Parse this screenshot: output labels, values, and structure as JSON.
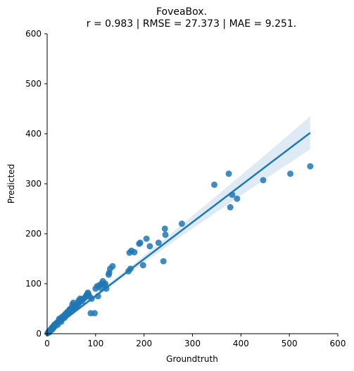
{
  "chart_data": {
    "type": "scatter",
    "title": "FoveaBox.",
    "subtitle": "r = 0.983 | RMSE = 27.373 | MAE = 9.251.",
    "xlabel": "Groundtruth",
    "ylabel": "Predicted",
    "xlim": [
      0,
      600
    ],
    "ylim": [
      0,
      600
    ],
    "xticks": [
      "0",
      "100",
      "200",
      "300",
      "400",
      "500",
      "600"
    ],
    "yticks": [
      "0",
      "100",
      "200",
      "300",
      "400",
      "500",
      "600"
    ],
    "grid": false,
    "point_color": "#1f77b4",
    "regression": {
      "x": [
        0,
        543
      ],
      "y": [
        2,
        402
      ],
      "ci_upper": [
        6,
        436
      ],
      "ci_lower": [
        -2,
        370
      ]
    },
    "points": [
      [
        1,
        1
      ],
      [
        2,
        2
      ],
      [
        3,
        4
      ],
      [
        4,
        3
      ],
      [
        5,
        6
      ],
      [
        6,
        5
      ],
      [
        7,
        8
      ],
      [
        8,
        7
      ],
      [
        9,
        10
      ],
      [
        10,
        12
      ],
      [
        11,
        9
      ],
      [
        12,
        14
      ],
      [
        13,
        12
      ],
      [
        14,
        16
      ],
      [
        15,
        18
      ],
      [
        16,
        15
      ],
      [
        18,
        20
      ],
      [
        20,
        22
      ],
      [
        22,
        18
      ],
      [
        24,
        26
      ],
      [
        25,
        30
      ],
      [
        27,
        28
      ],
      [
        29,
        24
      ],
      [
        30,
        33
      ],
      [
        32,
        30
      ],
      [
        34,
        36
      ],
      [
        36,
        32
      ],
      [
        38,
        40
      ],
      [
        40,
        38
      ],
      [
        42,
        44
      ],
      [
        44,
        42
      ],
      [
        46,
        48
      ],
      [
        48,
        50
      ],
      [
        50,
        46
      ],
      [
        52,
        58
      ],
      [
        54,
        62
      ],
      [
        55,
        54
      ],
      [
        57,
        50
      ],
      [
        58,
        52
      ],
      [
        60,
        56
      ],
      [
        62,
        60
      ],
      [
        64,
        58
      ],
      [
        65,
        66
      ],
      [
        67,
        63
      ],
      [
        68,
        70
      ],
      [
        70,
        68
      ],
      [
        72,
        65
      ],
      [
        75,
        70
      ],
      [
        78,
        72
      ],
      [
        80,
        75
      ],
      [
        82,
        78
      ],
      [
        84,
        82
      ],
      [
        85,
        80
      ],
      [
        88,
        74
      ],
      [
        90,
        41
      ],
      [
        92,
        70
      ],
      [
        98,
        41
      ],
      [
        100,
        90
      ],
      [
        103,
        95
      ],
      [
        105,
        75
      ],
      [
        108,
        97
      ],
      [
        110,
        92
      ],
      [
        112,
        100
      ],
      [
        115,
        105
      ],
      [
        118,
        98
      ],
      [
        120,
        100
      ],
      [
        122,
        90
      ],
      [
        127,
        118
      ],
      [
        128,
        122
      ],
      [
        130,
        130
      ],
      [
        135,
        135
      ],
      [
        168,
        125
      ],
      [
        170,
        162
      ],
      [
        172,
        130
      ],
      [
        174,
        166
      ],
      [
        180,
        163
      ],
      [
        190,
        180
      ],
      [
        192,
        182
      ],
      [
        198,
        137
      ],
      [
        205,
        190
      ],
      [
        212,
        175
      ],
      [
        230,
        182
      ],
      [
        240,
        145
      ],
      [
        243,
        210
      ],
      [
        244,
        198
      ],
      [
        278,
        220
      ],
      [
        345,
        298
      ],
      [
        375,
        320
      ],
      [
        378,
        253
      ],
      [
        382,
        278
      ],
      [
        392,
        270
      ],
      [
        446,
        307
      ],
      [
        502,
        320
      ],
      [
        543,
        335
      ]
    ]
  }
}
